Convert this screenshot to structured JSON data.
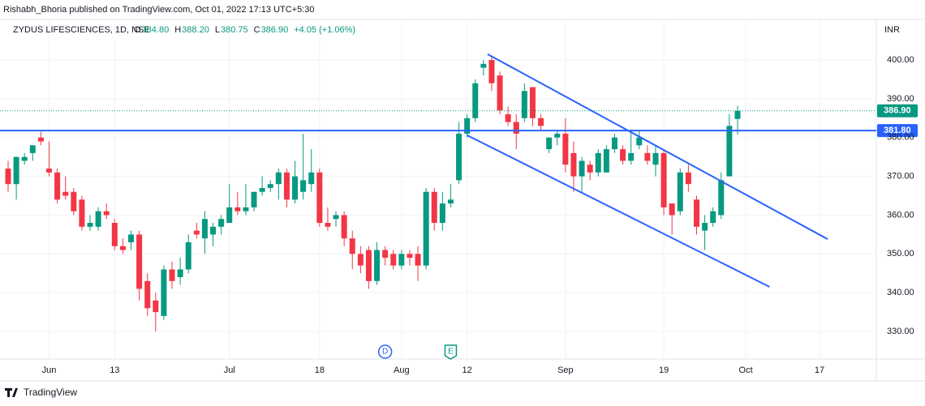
{
  "chart_data": {
    "type": "candlestick",
    "published": "Rishabh_Bhoria published on TradingView.com, Oct 01, 2022 17:13 UTC+5:30",
    "title": "ZYDUS LIFESCIENCES, 1D, NSE",
    "currency": "INR",
    "brand": "TradingView",
    "ohlc": [
      {
        "key": "O",
        "value": 384.8,
        "label": "384.80"
      },
      {
        "key": "H",
        "value": 388.2,
        "label": "388.20"
      },
      {
        "key": "L",
        "value": 380.75,
        "label": "380.75"
      },
      {
        "key": "C",
        "value": 386.9,
        "label": "386.90"
      }
    ],
    "change": {
      "value": 4.05,
      "label": "+4.05 (+1.06%)"
    },
    "up_color": "#089981",
    "down_color": "#f23645",
    "open": [
      372,
      368,
      374,
      376,
      380,
      372,
      371,
      366,
      366,
      364,
      357,
      357,
      361,
      358,
      352,
      353,
      355,
      343,
      338,
      334,
      346,
      344,
      346,
      356,
      354,
      355,
      357,
      358,
      362,
      361,
      362,
      366,
      367,
      368,
      371,
      364,
      366,
      368,
      371,
      358,
      359,
      360,
      354,
      350,
      351,
      343,
      351,
      350,
      347,
      350,
      350,
      347,
      366,
      358,
      363,
      369,
      381,
      385,
      398,
      400,
      396,
      386,
      384,
      385,
      393,
      385,
      377,
      380,
      381,
      376,
      370,
      373,
      371,
      371,
      377,
      377,
      374,
      378,
      376,
      373,
      376,
      363,
      361,
      371,
      364,
      356,
      358,
      360,
      370,
      384.8
    ],
    "high": [
      374,
      375,
      376,
      378,
      381.5,
      379,
      372,
      370,
      367,
      365,
      360,
      362,
      363,
      359,
      354,
      356,
      356,
      345,
      340,
      347,
      348,
      349,
      355,
      358,
      361,
      358,
      360,
      368,
      366,
      368,
      366,
      370,
      369,
      372,
      372,
      374,
      381,
      377,
      372,
      362,
      361,
      361,
      356,
      352,
      352,
      353,
      352,
      351,
      351,
      351,
      352,
      367,
      367,
      366,
      368,
      384,
      386,
      395,
      400,
      401,
      397,
      388,
      386,
      394,
      393,
      386,
      380,
      382,
      385,
      379,
      375,
      374,
      377,
      378,
      381,
      378,
      382,
      382,
      378,
      378,
      377,
      363,
      372,
      373,
      365,
      360,
      362,
      371,
      386,
      388.2
    ],
    "low": [
      366,
      364,
      373,
      374,
      378,
      370,
      363,
      364,
      360,
      356,
      356,
      356,
      359,
      351,
      350,
      351,
      338,
      334,
      330,
      333,
      341,
      342,
      345,
      354,
      350,
      352,
      355,
      358,
      360,
      360,
      361,
      365,
      366,
      364,
      362,
      363,
      364,
      366,
      357,
      356,
      357,
      352,
      346,
      345,
      341,
      342,
      347,
      346,
      346,
      347,
      343,
      346,
      356,
      356,
      362,
      368,
      380,
      384,
      396,
      392,
      386,
      383,
      377,
      384,
      383,
      382,
      376,
      378,
      371,
      366,
      366,
      369,
      370,
      371,
      376,
      373,
      373,
      377,
      373,
      370,
      360,
      355,
      360,
      366,
      355,
      351,
      357,
      359,
      370,
      380.75
    ],
    "close": [
      368,
      375,
      375,
      378,
      379,
      371,
      364,
      365,
      361,
      357,
      358,
      361,
      360,
      352,
      351,
      355,
      341,
      336,
      335,
      346,
      343,
      346,
      353,
      355,
      359,
      357,
      359,
      362,
      361,
      362,
      366,
      367,
      368,
      371,
      364,
      370,
      369,
      371,
      358,
      357,
      360,
      354,
      350,
      347,
      343,
      351,
      349,
      347,
      350,
      349,
      347,
      366,
      358,
      363,
      364,
      381,
      385,
      394,
      399,
      394,
      387,
      384,
      381,
      392,
      385,
      383,
      380,
      381,
      373,
      370,
      374,
      371,
      376,
      377,
      380,
      374,
      376,
      380,
      374,
      376,
      362,
      360,
      371,
      368,
      357,
      358,
      361,
      369,
      383,
      386.9
    ],
    "xlim": [
      -0.99,
      105.93
    ],
    "ylim": [
      323.53,
      410.45
    ],
    "xticks": [
      {
        "value": 5,
        "label": "Jun"
      },
      {
        "value": 13,
        "label": "13"
      },
      {
        "value": 27,
        "label": "Jul"
      },
      {
        "value": 38,
        "label": "18"
      },
      {
        "value": 48,
        "label": "Aug"
      },
      {
        "value": 56,
        "label": "12"
      },
      {
        "value": 68,
        "label": "Sep"
      },
      {
        "value": 80,
        "label": "19"
      },
      {
        "value": 90,
        "label": "Oct"
      },
      {
        "value": 99,
        "label": "17"
      }
    ],
    "yticks": [
      {
        "value": 330,
        "label": "330.00"
      },
      {
        "value": 340,
        "label": "340.00"
      },
      {
        "value": 350,
        "label": "350.00"
      },
      {
        "value": 360,
        "label": "360.00"
      },
      {
        "value": 370,
        "label": "370.00"
      },
      {
        "value": 380,
        "label": "380.00"
      },
      {
        "value": 390,
        "label": "390.00"
      },
      {
        "value": 400,
        "label": "400.00"
      }
    ],
    "grid": true,
    "hline": {
      "value": 381.8,
      "label": "381.80",
      "color": "#2962ff"
    },
    "last_price": {
      "value": 386.9,
      "label": "386.90",
      "color": "#089981"
    },
    "trendlines": [
      {
        "x": [
          58.5,
          100
        ],
        "y": [
          401.5,
          353.8
        ],
        "color": "#2962ff"
      },
      {
        "x": [
          56,
          92.9
        ],
        "y": [
          380.6,
          341.5
        ],
        "color": "#2962ff"
      }
    ],
    "events": [
      {
        "x": 46,
        "label": "D",
        "color": "#2962ff"
      },
      {
        "x": 54,
        "label": "E",
        "color": "#089981"
      }
    ]
  }
}
